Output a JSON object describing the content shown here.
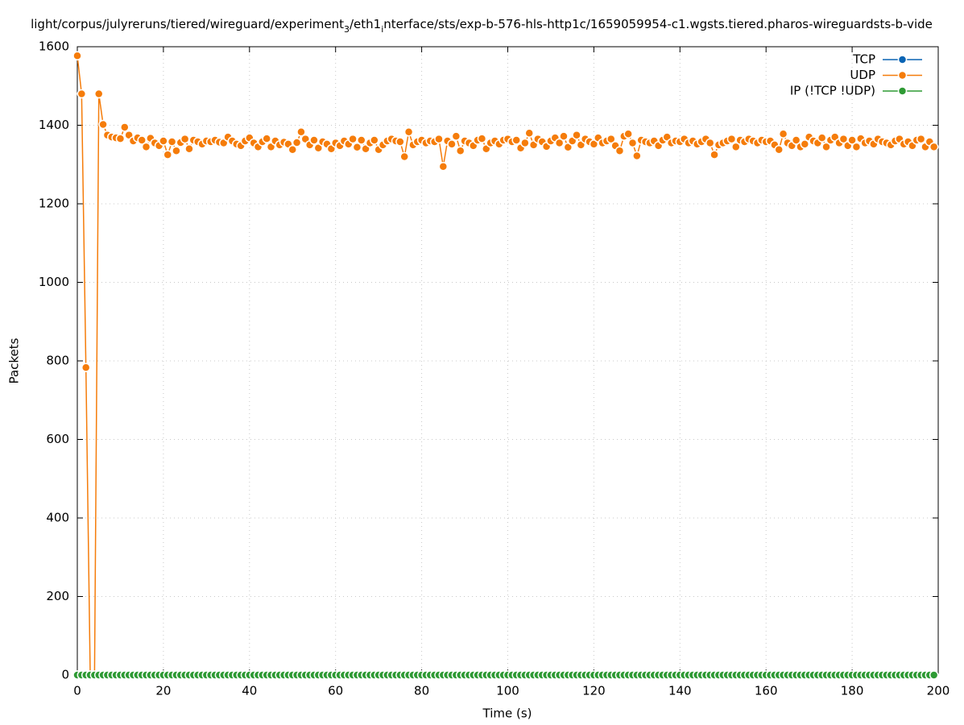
{
  "chart_data": {
    "type": "line",
    "title": [
      "light/corpus/julyreruns/tiered/wireguard/experiment",
      "3",
      "/eth1",
      "i",
      "nterface/sts/exp-b-576-hls-http1c/1659059954-c1.wgsts.tiered.pharos-wireguardsts-b-vide"
    ],
    "x_label": "Time (s)",
    "y_label": "Packets",
    "xlim": [
      0,
      200
    ],
    "xticks": [
      0,
      20,
      40,
      60,
      80,
      100,
      120,
      140,
      160,
      180,
      200
    ],
    "ylim": [
      0,
      1600
    ],
    "yticks": [
      0,
      200,
      400,
      600,
      800,
      1000,
      1200,
      1400,
      1600
    ],
    "grid": true,
    "legend": "upper right",
    "x": [
      0,
      1,
      2,
      3,
      4,
      5,
      6,
      7,
      8,
      9,
      10,
      11,
      12,
      13,
      14,
      15,
      16,
      17,
      18,
      19,
      20,
      21,
      22,
      23,
      24,
      25,
      26,
      27,
      28,
      29,
      30,
      31,
      32,
      33,
      34,
      35,
      36,
      37,
      38,
      39,
      40,
      41,
      42,
      43,
      44,
      45,
      46,
      47,
      48,
      49,
      50,
      51,
      52,
      53,
      54,
      55,
      56,
      57,
      58,
      59,
      60,
      61,
      62,
      63,
      64,
      65,
      66,
      67,
      68,
      69,
      70,
      71,
      72,
      73,
      74,
      75,
      76,
      77,
      78,
      79,
      80,
      81,
      82,
      83,
      84,
      85,
      86,
      87,
      88,
      89,
      90,
      91,
      92,
      93,
      94,
      95,
      96,
      97,
      98,
      99,
      100,
      101,
      102,
      103,
      104,
      105,
      106,
      107,
      108,
      109,
      110,
      111,
      112,
      113,
      114,
      115,
      116,
      117,
      118,
      119,
      120,
      121,
      122,
      123,
      124,
      125,
      126,
      127,
      128,
      129,
      130,
      131,
      132,
      133,
      134,
      135,
      136,
      137,
      138,
      139,
      140,
      141,
      142,
      143,
      144,
      145,
      146,
      147,
      148,
      149,
      150,
      151,
      152,
      153,
      154,
      155,
      156,
      157,
      158,
      159,
      160,
      161,
      162,
      163,
      164,
      165,
      166,
      167,
      168,
      169,
      170,
      171,
      172,
      173,
      174,
      175,
      176,
      177,
      178,
      179,
      180,
      181,
      182,
      183,
      184,
      185,
      186,
      187,
      188,
      189,
      190,
      191,
      192,
      193,
      194,
      195,
      196,
      197,
      198,
      199
    ],
    "series": [
      {
        "name": "TCP",
        "color": "#0a64b4",
        "values": [
          0,
          0,
          0,
          0,
          0,
          0,
          0,
          0,
          0,
          0,
          0,
          0,
          0,
          0,
          0,
          0,
          0,
          0,
          0,
          0,
          0,
          0,
          0,
          0,
          0,
          0,
          0,
          0,
          0,
          0,
          0,
          0,
          0,
          0,
          0,
          0,
          0,
          0,
          0,
          0,
          0,
          0,
          0,
          0,
          0,
          0,
          0,
          0,
          0,
          0,
          0,
          0,
          0,
          0,
          0,
          0,
          0,
          0,
          0,
          0,
          0,
          0,
          0,
          0,
          0,
          0,
          0,
          0,
          0,
          0,
          0,
          0,
          0,
          0,
          0,
          0,
          0,
          0,
          0,
          0,
          0,
          0,
          0,
          0,
          0,
          0,
          0,
          0,
          0,
          0,
          0,
          0,
          0,
          0,
          0,
          0,
          0,
          0,
          0,
          0,
          0,
          0,
          0,
          0,
          0,
          0,
          0,
          0,
          0,
          0,
          0,
          0,
          0,
          0,
          0,
          0,
          0,
          0,
          0,
          0,
          0,
          0,
          0,
          0,
          0,
          0,
          0,
          0,
          0,
          0,
          0,
          0,
          0,
          0,
          0,
          0,
          0,
          0,
          0,
          0,
          0,
          0,
          0,
          0,
          0,
          0,
          0,
          0,
          0,
          0,
          0,
          0,
          0,
          0,
          0,
          0,
          0,
          0,
          0,
          0,
          0,
          0,
          0,
          0,
          0,
          0,
          0,
          0,
          0,
          0,
          0,
          0,
          0,
          0,
          0,
          0,
          0,
          0,
          0,
          0,
          0,
          0,
          0,
          0,
          0,
          0,
          0,
          0,
          0,
          0,
          0,
          0,
          0,
          0,
          0,
          0,
          0,
          0,
          0,
          0
        ]
      },
      {
        "name": "UDP",
        "color": "#f57c0a",
        "values": [
          1577,
          1480,
          783,
          0,
          0,
          1480,
          1402,
          1375,
          1370,
          1368,
          1366,
          1395,
          1375,
          1360,
          1368,
          1362,
          1345,
          1367,
          1355,
          1348,
          1360,
          1325,
          1358,
          1335,
          1356,
          1365,
          1340,
          1362,
          1358,
          1352,
          1360,
          1358,
          1362,
          1357,
          1355,
          1370,
          1360,
          1352,
          1348,
          1360,
          1368,
          1355,
          1345,
          1358,
          1366,
          1345,
          1360,
          1350,
          1357,
          1352,
          1338,
          1356,
          1383,
          1365,
          1350,
          1362,
          1342,
          1358,
          1352,
          1340,
          1355,
          1348,
          1360,
          1352,
          1365,
          1344,
          1362,
          1340,
          1355,
          1362,
          1338,
          1350,
          1360,
          1365,
          1360,
          1358,
          1320,
          1383,
          1350,
          1358,
          1362,
          1355,
          1360,
          1358,
          1365,
          1295,
          1360,
          1352,
          1372,
          1335,
          1360,
          1355,
          1348,
          1362,
          1366,
          1340,
          1355,
          1360,
          1352,
          1362,
          1365,
          1358,
          1362,
          1342,
          1355,
          1380,
          1350,
          1365,
          1358,
          1346,
          1360,
          1368,
          1355,
          1372,
          1344,
          1360,
          1375,
          1350,
          1365,
          1358,
          1352,
          1368,
          1355,
          1360,
          1365,
          1348,
          1335,
          1372,
          1378,
          1355,
          1322,
          1362,
          1358,
          1355,
          1360,
          1348,
          1362,
          1370,
          1355,
          1360,
          1358,
          1365,
          1355,
          1360,
          1352,
          1358,
          1365,
          1355,
          1325,
          1350,
          1355,
          1360,
          1365,
          1345,
          1362,
          1358,
          1365,
          1360,
          1355,
          1362,
          1358,
          1360,
          1350,
          1338,
          1378,
          1355,
          1348,
          1362,
          1345,
          1352,
          1370,
          1360,
          1355,
          1368,
          1345,
          1362,
          1370,
          1355,
          1365,
          1348,
          1362,
          1345,
          1366,
          1355,
          1360,
          1352,
          1365,
          1358,
          1355,
          1350,
          1360,
          1365,
          1352,
          1358,
          1348,
          1362,
          1365,
          1345,
          1358,
          1345
        ]
      },
      {
        "name": "IP (!TCP  !UDP)",
        "color": "#2e9a34",
        "values": [
          0,
          0,
          0,
          0,
          0,
          0,
          0,
          0,
          0,
          0,
          0,
          0,
          0,
          0,
          0,
          0,
          0,
          0,
          0,
          0,
          0,
          0,
          0,
          0,
          0,
          0,
          0,
          0,
          0,
          0,
          0,
          0,
          0,
          0,
          0,
          0,
          0,
          0,
          0,
          0,
          0,
          0,
          0,
          0,
          0,
          0,
          0,
          0,
          0,
          0,
          0,
          0,
          0,
          0,
          0,
          0,
          0,
          0,
          0,
          0,
          0,
          0,
          0,
          0,
          0,
          0,
          0,
          0,
          0,
          0,
          0,
          0,
          0,
          0,
          0,
          0,
          0,
          0,
          0,
          0,
          0,
          0,
          0,
          0,
          0,
          0,
          0,
          0,
          0,
          0,
          0,
          0,
          0,
          0,
          0,
          0,
          0,
          0,
          0,
          0,
          0,
          0,
          0,
          0,
          0,
          0,
          0,
          0,
          0,
          0,
          0,
          0,
          0,
          0,
          0,
          0,
          0,
          0,
          0,
          0,
          0,
          0,
          0,
          0,
          0,
          0,
          0,
          0,
          0,
          0,
          0,
          0,
          0,
          0,
          0,
          0,
          0,
          0,
          0,
          0,
          0,
          0,
          0,
          0,
          0,
          0,
          0,
          0,
          0,
          0,
          0,
          0,
          0,
          0,
          0,
          0,
          0,
          0,
          0,
          0,
          0,
          0,
          0,
          0,
          0,
          0,
          0,
          0,
          0,
          0,
          0,
          0,
          0,
          0,
          0,
          0,
          0,
          0,
          0,
          0,
          0,
          0,
          0,
          0,
          0,
          0,
          0,
          0,
          0,
          0,
          0,
          0,
          0,
          0,
          0,
          0,
          0,
          0,
          0,
          0
        ]
      }
    ]
  }
}
